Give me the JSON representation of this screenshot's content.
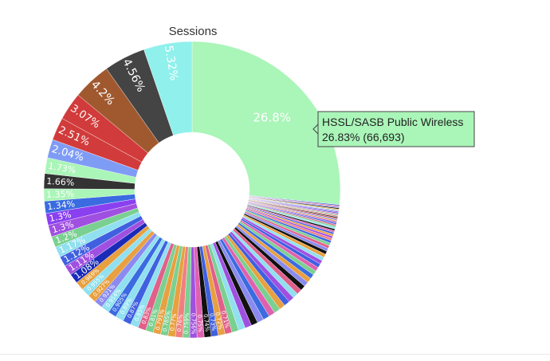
{
  "chart_data": {
    "type": "pie",
    "hole": true,
    "title": "Sessions",
    "labeled_slices": [
      {
        "label": "26.8%",
        "value": 26.83,
        "color": "#aaf5b8",
        "text_color": "#ffffff",
        "name": "HSSL/SASB Public Wireless"
      },
      {
        "label": "",
        "value": 0.12,
        "color": "#3a6be0"
      },
      {
        "label": "",
        "value": 0.12,
        "color": "#e0608a"
      },
      {
        "label": "",
        "value": 0.12,
        "color": "#8a8af0"
      },
      {
        "label": "",
        "value": 0.12,
        "color": "#111111"
      },
      {
        "label": "",
        "value": 0.12,
        "color": "#e8a040"
      },
      {
        "label": "",
        "value": 0.12,
        "color": "#90e0f0"
      },
      {
        "label": "",
        "value": 0.12,
        "color": "#a050e0"
      },
      {
        "label": "",
        "value": 0.12,
        "color": "#4060e0"
      },
      {
        "label": "",
        "value": 0.12,
        "color": "#e060b0"
      },
      {
        "label": "",
        "value": 0.12,
        "color": "#7ad090"
      },
      {
        "label": "",
        "value": 0.13,
        "color": "#f08080"
      },
      {
        "label": "",
        "value": 0.13,
        "color": "#303030"
      },
      {
        "label": "",
        "value": 0.13,
        "color": "#c04040"
      },
      {
        "label": "",
        "value": 0.14,
        "color": "#8a8af0"
      },
      {
        "label": "",
        "value": 0.14,
        "color": "#e8a040"
      },
      {
        "label": "",
        "value": 0.15,
        "color": "#a050e0"
      },
      {
        "label": "",
        "value": 0.15,
        "color": "#3a6be0"
      },
      {
        "label": "",
        "value": 0.16,
        "color": "#e0608a"
      },
      {
        "label": "",
        "value": 0.17,
        "color": "#7ad090"
      },
      {
        "label": "",
        "value": 0.18,
        "color": "#90e0f0"
      },
      {
        "label": "",
        "value": 0.19,
        "color": "#111111"
      },
      {
        "label": "",
        "value": 0.2,
        "color": "#e060b0"
      },
      {
        "label": "",
        "value": 0.21,
        "color": "#4060e0"
      },
      {
        "label": "",
        "value": 0.22,
        "color": "#e8a040"
      },
      {
        "label": "",
        "value": 0.24,
        "color": "#a050e0"
      },
      {
        "label": "",
        "value": 0.26,
        "color": "#f08080"
      },
      {
        "label": "",
        "value": 0.28,
        "color": "#3a6be0"
      },
      {
        "label": "",
        "value": 0.3,
        "color": "#7ad090"
      },
      {
        "label": "",
        "value": 0.32,
        "color": "#e0608a"
      },
      {
        "label": "",
        "value": 0.34,
        "color": "#8a8af0"
      },
      {
        "label": "",
        "value": 0.36,
        "color": "#111111"
      },
      {
        "label": "",
        "value": 0.38,
        "color": "#e8a040"
      },
      {
        "label": "",
        "value": 0.4,
        "color": "#90e0f0"
      },
      {
        "label": "",
        "value": 0.42,
        "color": "#a050e0"
      },
      {
        "label": "",
        "value": 0.44,
        "color": "#4060e0"
      },
      {
        "label": "",
        "value": 0.46,
        "color": "#e060b0"
      },
      {
        "label": "",
        "value": 0.48,
        "color": "#7ad090"
      },
      {
        "label": "",
        "value": 0.5,
        "color": "#3a6be0"
      },
      {
        "label": "",
        "value": 0.52,
        "color": "#e8a040"
      },
      {
        "label": "",
        "value": 0.54,
        "color": "#8a8af0"
      },
      {
        "label": "",
        "value": 0.56,
        "color": "#111111"
      },
      {
        "label": "",
        "value": 0.58,
        "color": "#e0608a"
      },
      {
        "label": "",
        "value": 0.6,
        "color": "#90e0f0"
      },
      {
        "label": "",
        "value": 0.62,
        "color": "#a050e0"
      },
      {
        "label": "",
        "value": 0.64,
        "color": "#4060e0"
      },
      {
        "label": "",
        "value": 0.66,
        "color": "#e8a040"
      },
      {
        "label": "",
        "value": 0.68,
        "color": "#7ad090"
      },
      {
        "label": "",
        "value": 0.7,
        "color": "#e060b0"
      },
      {
        "label": "",
        "value": 0.71,
        "color": "#3a6be0"
      },
      {
        "label": "",
        "value": 0.72,
        "color": "#8a8af0"
      },
      {
        "label": "",
        "value": 0.73,
        "color": "#111111"
      },
      {
        "label": "",
        "value": 0.74,
        "color": "#a050e0"
      },
      {
        "label": "",
        "value": 0.75,
        "color": "#90e0f0"
      },
      {
        "label": "",
        "value": 0.756,
        "color": "#7ad090"
      },
      {
        "label": "",
        "value": 0.759,
        "color": "#e0608a"
      },
      {
        "label": "",
        "value": 0.76,
        "color": "#e8a040"
      },
      {
        "label": "",
        "value": 0.765,
        "color": "#4060e0"
      },
      {
        "label": "",
        "value": 0.77,
        "color": "#111111"
      },
      {
        "label": "",
        "value": 0.78,
        "color": "#e060b0"
      },
      {
        "label": "",
        "value": 0.785,
        "color": "#a050e0"
      },
      {
        "label": "",
        "value": 0.79,
        "color": "#7ad090"
      },
      {
        "label": "",
        "value": 0.791,
        "color": "#f08080"
      },
      {
        "label": "",
        "value": 0.8,
        "color": "#e8a040"
      },
      {
        "label": "",
        "value": 0.81,
        "color": "#7ad090"
      },
      {
        "label": "",
        "value": 0.83,
        "color": "#e8a040"
      },
      {
        "label": "",
        "value": 0.85,
        "color": "#7ad090"
      },
      {
        "label": "",
        "value": 0.87,
        "color": "#e0608a"
      },
      {
        "label": "",
        "value": 0.89,
        "color": "#90e0f0"
      },
      {
        "label": "",
        "value": 0.9,
        "color": "#4060e0"
      },
      {
        "label": "",
        "value": 0.905,
        "color": "#90e0f0"
      },
      {
        "label": "",
        "value": 0.914,
        "color": "#3a6be0"
      },
      {
        "label": "",
        "value": 0.921,
        "color": "#90e0f0"
      },
      {
        "label": "",
        "value": 0.927,
        "color": "#8a8af0"
      },
      {
        "label": "",
        "value": 0.95,
        "color": "#e8a040"
      },
      {
        "label": "",
        "value": 0.955,
        "color": "#90e0f0"
      },
      {
        "label": "",
        "value": 0.969,
        "color": "#e8a040"
      },
      {
        "label": "1.08%",
        "value": 1.08,
        "color": "#1a2bb8",
        "text_color": "#ffffff"
      },
      {
        "label": "1.11%",
        "value": 1.11,
        "color": "#a050e0",
        "text_color": "#ffffff"
      },
      {
        "label": "1.12%",
        "value": 1.12,
        "color": "#4060e0",
        "text_color": "#ffffff"
      },
      {
        "label": "1.17%",
        "value": 1.17,
        "color": "#90e0f0",
        "text_color": "#ffffff"
      },
      {
        "label": "1.2%",
        "value": 1.2,
        "color": "#7ad090",
        "text_color": "#ffffff"
      },
      {
        "label": "1.3%",
        "value": 1.3,
        "color": "#a050e0",
        "text_color": "#ffffff"
      },
      {
        "label": "1.3%",
        "value": 1.3,
        "color": "#8a40f0",
        "text_color": "#ffffff"
      },
      {
        "label": "1.34%",
        "value": 1.34,
        "color": "#3a6be0",
        "text_color": "#ffffff"
      },
      {
        "label": "1.35%",
        "value": 1.35,
        "color": "#aaf5b8",
        "text_color": "#ffffff"
      },
      {
        "label": "1.66%",
        "value": 1.66,
        "color": "#333333",
        "text_color": "#ffffff"
      },
      {
        "label": "1.73%",
        "value": 1.73,
        "color": "#aaf5b8",
        "text_color": "#ffffff"
      },
      {
        "label": "2.04%",
        "value": 2.04,
        "color": "#7f9cf5",
        "text_color": "#ffffff"
      },
      {
        "label": "2.51%",
        "value": 2.51,
        "color": "#d23b3b",
        "text_color": "#ffffff"
      },
      {
        "label": "3.07%",
        "value": 3.07,
        "color": "#d23b3b",
        "text_color": "#ffffff"
      },
      {
        "label": "4.2%",
        "value": 4.2,
        "color": "#a0592f",
        "text_color": "#ffffff"
      },
      {
        "label": "4.56%",
        "value": 4.56,
        "color": "#444444",
        "text_color": "#ffffff"
      },
      {
        "label": "5.32%",
        "value": 5.32,
        "color": "#90f0ec",
        "text_color": "#ffffff"
      }
    ],
    "small_labels": [
      "0.969%",
      "0.955%",
      "0.927%",
      "0.921%",
      "0.914%",
      "0.905%",
      "0.89%",
      "0.87%",
      "0.85%",
      "0.83%",
      "0.81%",
      "0.791%",
      "0.785%",
      "0.77%",
      "0.76%",
      "0.759%",
      "0.756%",
      "0.75%",
      "0.74%",
      "0.73%",
      "0.72%",
      "0.71%"
    ],
    "hover_tooltip": {
      "title": "HSSL/SASB Public Wireless",
      "value_line": "26.83% (66,693)",
      "background": "#aaf5b8",
      "border": "#444444"
    }
  }
}
